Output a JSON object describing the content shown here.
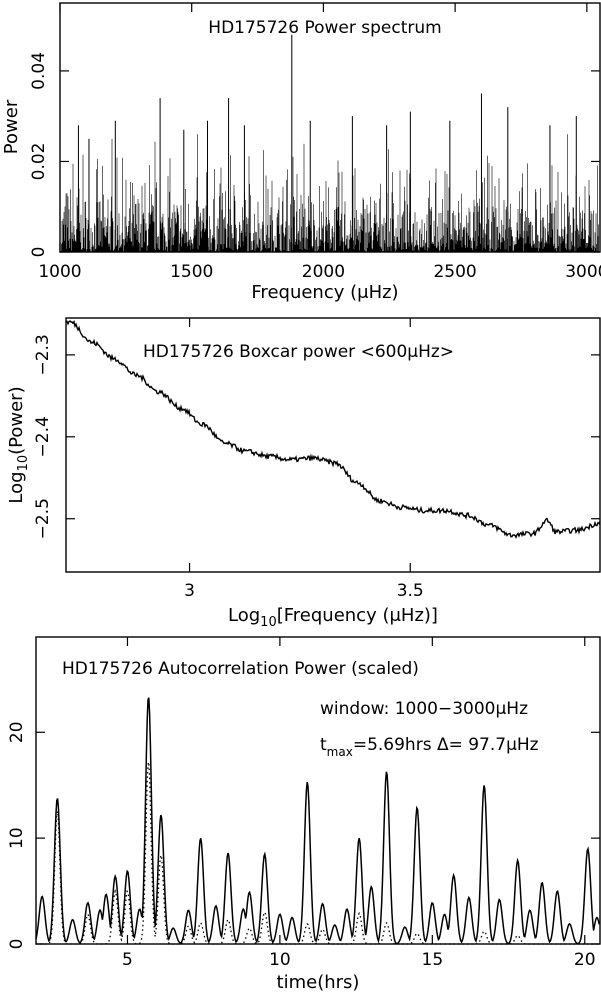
{
  "chart_data": [
    {
      "type": "bar",
      "title": "HD175726 Power spectrum",
      "xlabel": "Frequency (μHz)",
      "ylabel": "Power",
      "xlim": [
        1000,
        3050
      ],
      "ylim": [
        0,
        0.055
      ],
      "xticks": [
        1000,
        1500,
        2000,
        2500,
        3000
      ],
      "yticks": [
        0,
        0.02,
        0.04
      ],
      "ytick_labels": [
        "0",
        "0.02",
        "0.04"
      ],
      "grid": false,
      "noise_level": 0.012,
      "peaks": [
        {
          "x": 1070,
          "y": 0.028
        },
        {
          "x": 1110,
          "y": 0.025
        },
        {
          "x": 1210,
          "y": 0.029
        },
        {
          "x": 1380,
          "y": 0.034
        },
        {
          "x": 1470,
          "y": 0.027
        },
        {
          "x": 1560,
          "y": 0.029
        },
        {
          "x": 1640,
          "y": 0.034
        },
        {
          "x": 1700,
          "y": 0.028
        },
        {
          "x": 1880,
          "y": 0.048
        },
        {
          "x": 1950,
          "y": 0.029
        },
        {
          "x": 2110,
          "y": 0.03
        },
        {
          "x": 2240,
          "y": 0.028
        },
        {
          "x": 2330,
          "y": 0.031
        },
        {
          "x": 2480,
          "y": 0.029
        },
        {
          "x": 2600,
          "y": 0.035
        },
        {
          "x": 2700,
          "y": 0.032
        },
        {
          "x": 2860,
          "y": 0.028
        },
        {
          "x": 2960,
          "y": 0.03
        }
      ]
    },
    {
      "type": "line",
      "title": "HD175726 Boxcar power <600μHz>",
      "xlabel": "Log10[Frequency (μHz)]",
      "ylabel": "Log10(Power)",
      "xlim": [
        2.72,
        3.93
      ],
      "ylim": [
        -2.565,
        -2.255
      ],
      "xticks": [
        3,
        3.5
      ],
      "yticks": [
        -2.3,
        -2.4,
        -2.5
      ],
      "ytick_labels": [
        "−2.3",
        "−2.4",
        "−2.5"
      ],
      "grid": false,
      "x": [
        2.73,
        2.78,
        2.83,
        2.88,
        2.93,
        2.98,
        3.03,
        3.08,
        3.13,
        3.18,
        3.23,
        3.28,
        3.33,
        3.38,
        3.43,
        3.48,
        3.53,
        3.58,
        3.63,
        3.68,
        3.73,
        3.78,
        3.81,
        3.83,
        3.88,
        3.93
      ],
      "y": [
        -2.26,
        -2.285,
        -2.305,
        -2.325,
        -2.345,
        -2.365,
        -2.385,
        -2.408,
        -2.418,
        -2.424,
        -2.428,
        -2.426,
        -2.432,
        -2.456,
        -2.478,
        -2.486,
        -2.49,
        -2.49,
        -2.496,
        -2.508,
        -2.52,
        -2.518,
        -2.502,
        -2.516,
        -2.514,
        -2.505
      ]
    },
    {
      "type": "line",
      "title": "HD175726 Autocorrelation Power (scaled)",
      "annotations": [
        "window: 1000−3000μHz",
        "t",
        "max",
        "=5.69hrs   Δ=  97.7μHz"
      ],
      "xlabel": "time(hrs)",
      "ylabel": "",
      "xlim": [
        2,
        20.5
      ],
      "ylim": [
        0,
        29
      ],
      "xticks": [
        5,
        10,
        15,
        20
      ],
      "yticks": [
        0,
        10,
        20
      ],
      "ytick_labels": [
        "0",
        "10",
        "20"
      ],
      "grid": false,
      "series": [
        {
          "style": "solid",
          "peaks": [
            {
              "x": 2.2,
              "y": 4.5
            },
            {
              "x": 2.7,
              "y": 13.8
            },
            {
              "x": 3.2,
              "y": 2.3
            },
            {
              "x": 3.7,
              "y": 3.9
            },
            {
              "x": 4.1,
              "y": 3.2
            },
            {
              "x": 4.3,
              "y": 4.7
            },
            {
              "x": 4.6,
              "y": 6.4
            },
            {
              "x": 5.0,
              "y": 6.9
            },
            {
              "x": 5.4,
              "y": 3.3
            },
            {
              "x": 5.69,
              "y": 23.4
            },
            {
              "x": 6.1,
              "y": 12.2
            },
            {
              "x": 6.5,
              "y": 1.5
            },
            {
              "x": 7.0,
              "y": 3.2
            },
            {
              "x": 7.4,
              "y": 10.0
            },
            {
              "x": 7.9,
              "y": 3.6
            },
            {
              "x": 8.3,
              "y": 8.6
            },
            {
              "x": 8.8,
              "y": 3.3
            },
            {
              "x": 9.0,
              "y": 4.9
            },
            {
              "x": 9.5,
              "y": 8.5
            },
            {
              "x": 10.0,
              "y": 2.8
            },
            {
              "x": 10.4,
              "y": 2.5
            },
            {
              "x": 10.9,
              "y": 15.3
            },
            {
              "x": 11.4,
              "y": 3.8
            },
            {
              "x": 11.8,
              "y": 1.8
            },
            {
              "x": 12.2,
              "y": 3.3
            },
            {
              "x": 12.6,
              "y": 10.0
            },
            {
              "x": 13.0,
              "y": 5.4
            },
            {
              "x": 13.5,
              "y": 16.3
            },
            {
              "x": 14.1,
              "y": 1.6
            },
            {
              "x": 14.5,
              "y": 12.9
            },
            {
              "x": 15.0,
              "y": 3.9
            },
            {
              "x": 15.4,
              "y": 2.8
            },
            {
              "x": 15.7,
              "y": 6.5
            },
            {
              "x": 16.2,
              "y": 4.4
            },
            {
              "x": 16.7,
              "y": 15.0
            },
            {
              "x": 17.2,
              "y": 4.2
            },
            {
              "x": 17.8,
              "y": 7.9
            },
            {
              "x": 18.2,
              "y": 3.2
            },
            {
              "x": 18.6,
              "y": 5.8
            },
            {
              "x": 19.1,
              "y": 5.0
            },
            {
              "x": 19.5,
              "y": 1.9
            },
            {
              "x": 20.1,
              "y": 9.0
            },
            {
              "x": 20.4,
              "y": 2.5
            }
          ]
        },
        {
          "style": "dotted",
          "peaks": [
            {
              "x": 2.7,
              "y": 12.6
            },
            {
              "x": 3.7,
              "y": 2.8
            },
            {
              "x": 4.6,
              "y": 5.0
            },
            {
              "x": 5.0,
              "y": 5.0
            },
            {
              "x": 5.69,
              "y": 17.3
            },
            {
              "x": 6.1,
              "y": 8.4
            },
            {
              "x": 7.0,
              "y": 1.7
            },
            {
              "x": 7.4,
              "y": 2.0
            },
            {
              "x": 8.3,
              "y": 2.3
            },
            {
              "x": 9.0,
              "y": 1.5
            },
            {
              "x": 9.5,
              "y": 3.0
            },
            {
              "x": 10.9,
              "y": 1.9
            },
            {
              "x": 11.4,
              "y": 1.4
            },
            {
              "x": 12.6,
              "y": 2.9
            },
            {
              "x": 13.5,
              "y": 2.0
            },
            {
              "x": 14.5,
              "y": 1.0
            },
            {
              "x": 16.7,
              "y": 1.2
            },
            {
              "x": 17.8,
              "y": 0.8
            }
          ]
        }
      ]
    }
  ]
}
